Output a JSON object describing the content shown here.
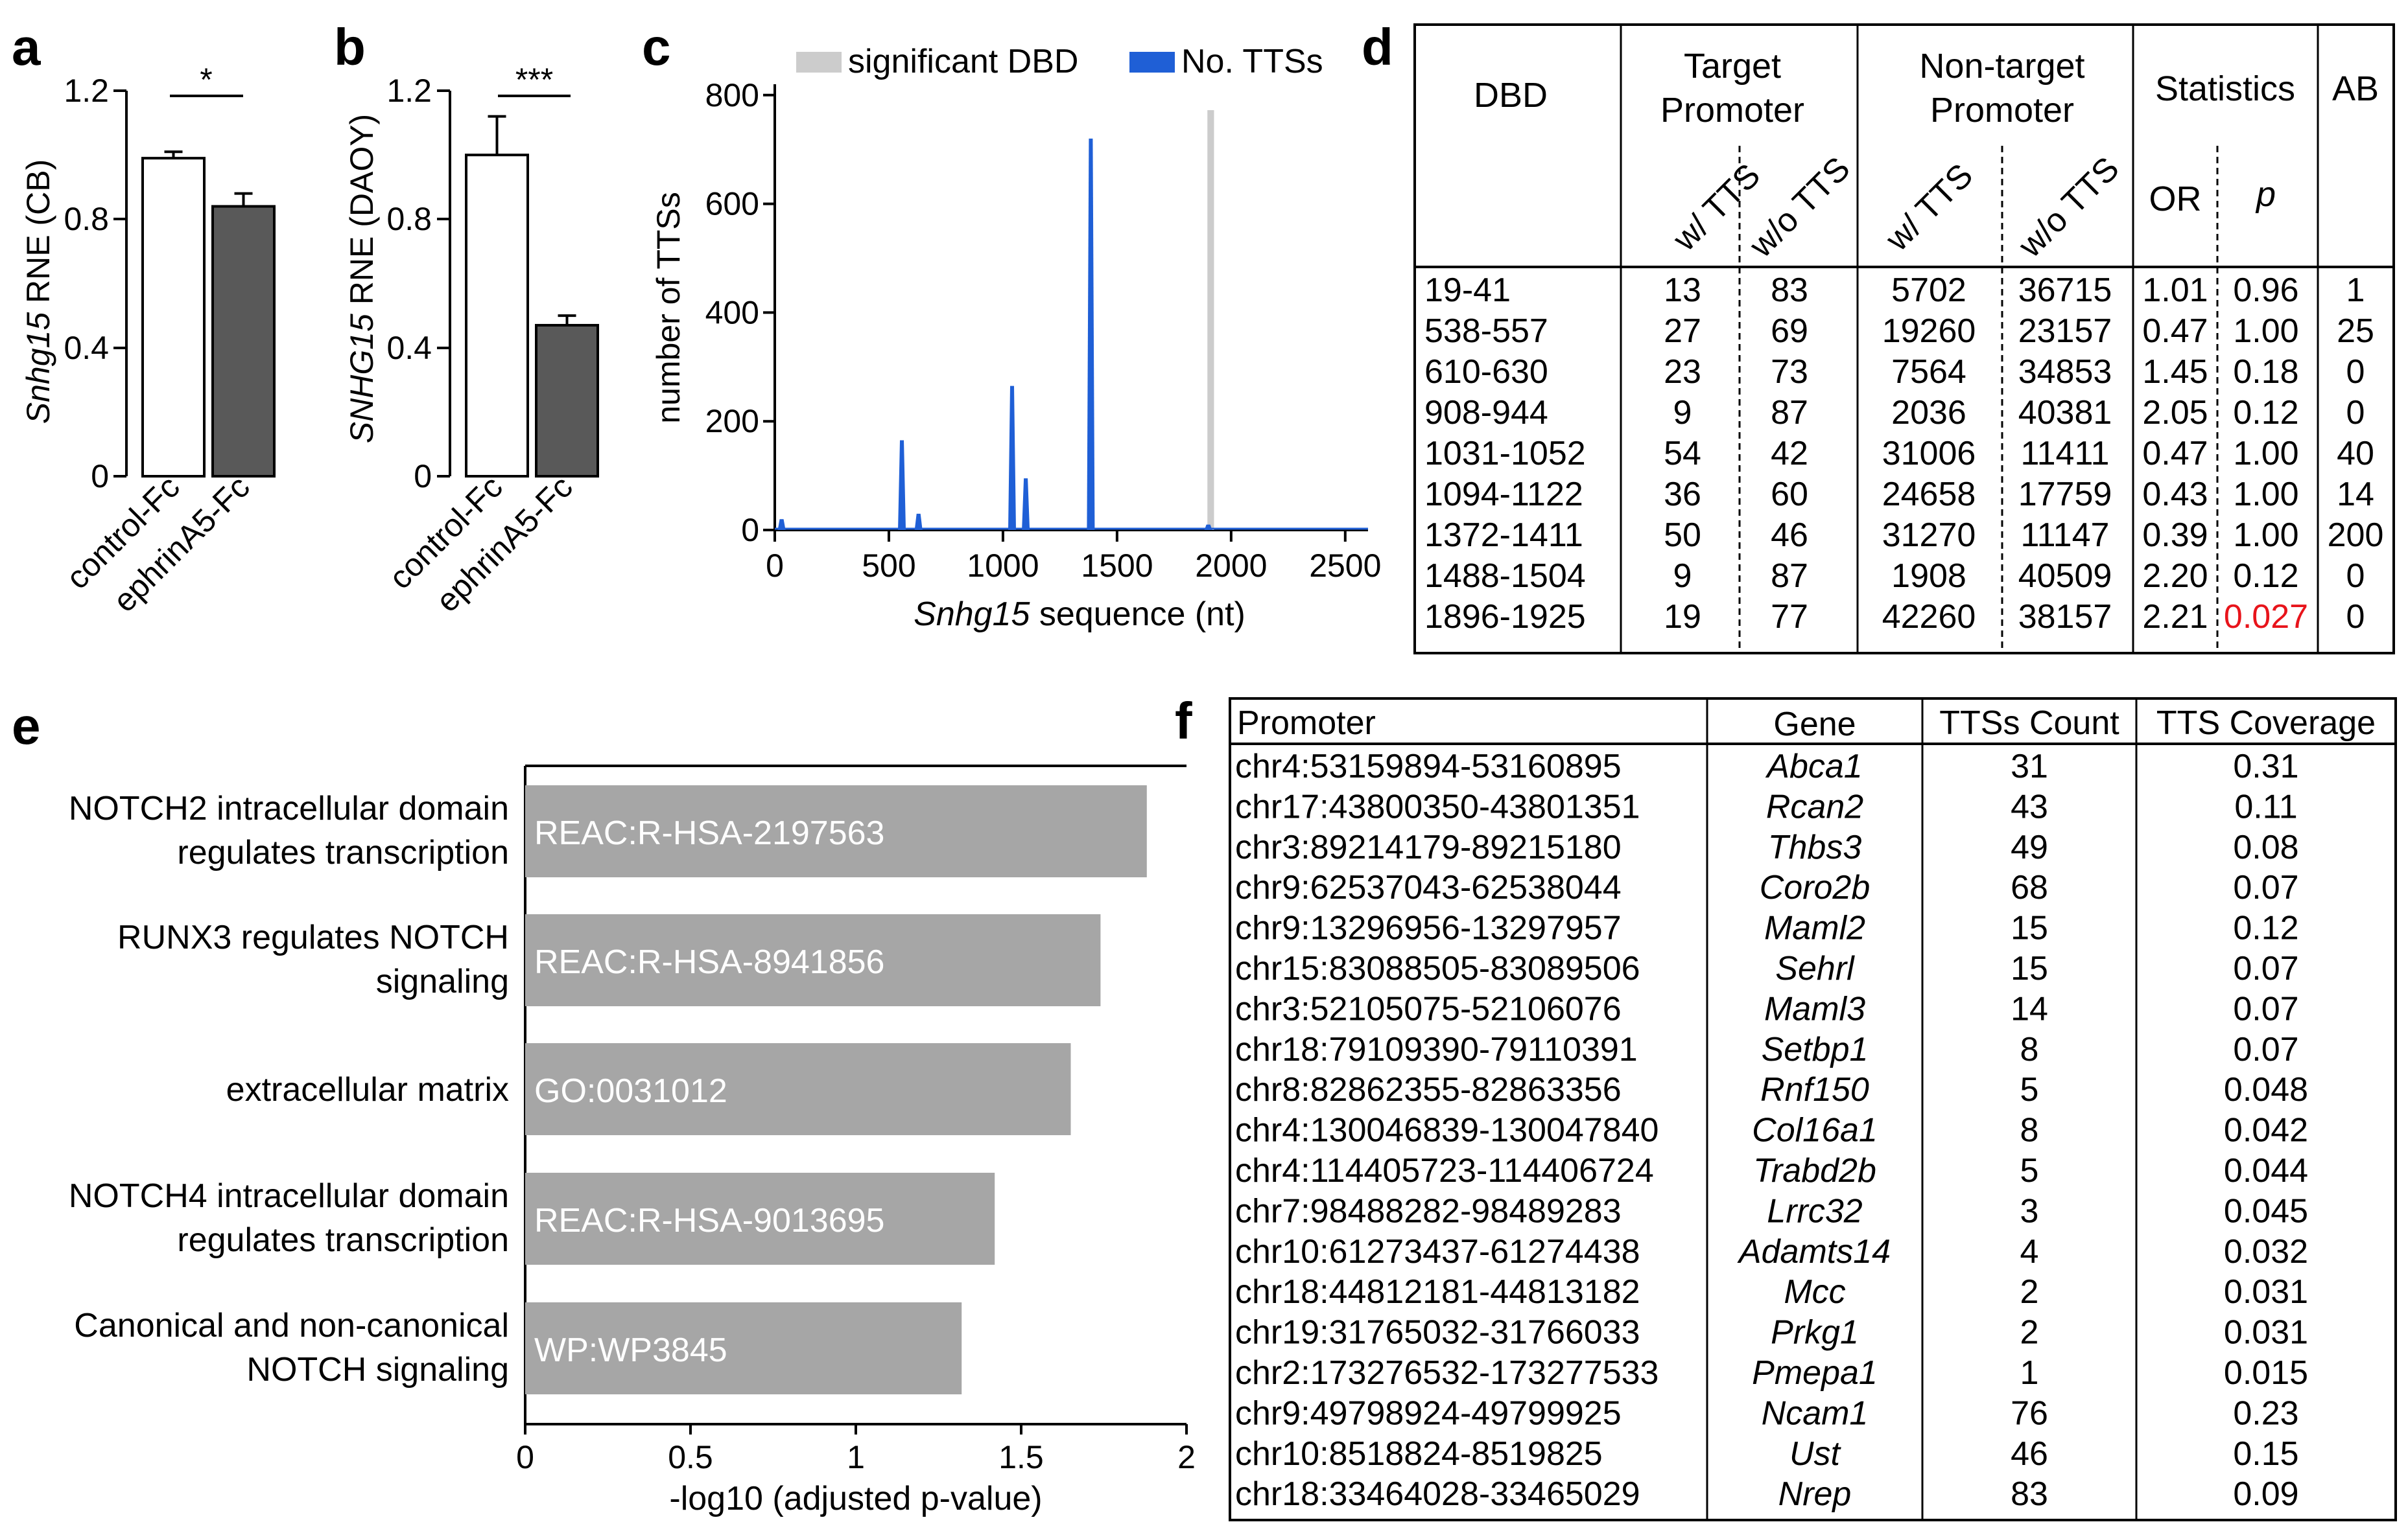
{
  "panels": {
    "a": {
      "letter": "a",
      "ylabel_italic": "Snhg15",
      "ylabel_rest": " RNE (CB)",
      "significance": "*",
      "tick_labels": [
        "0",
        "0.4",
        "0.8",
        "1.2"
      ]
    },
    "b": {
      "letter": "b",
      "ylabel_italic": "SNHG15",
      "ylabel_rest": " RNE (DAOY)",
      "significance": "***",
      "tick_labels": [
        "0",
        "0.4",
        "0.8",
        "1.2"
      ]
    },
    "c": {
      "letter": "c",
      "legend": [
        "significant DBD",
        "No. TTSs"
      ],
      "ylabel": "number of TTSs",
      "xlabel_italic": "Snhg15",
      "xlabel_rest": " sequence (nt)",
      "y_tick_labels": [
        "0",
        "200",
        "400",
        "600",
        "800"
      ],
      "x_tick_labels": [
        "0",
        "500",
        "1000",
        "1500",
        "2000",
        "2500"
      ]
    },
    "d": {
      "letter": "d",
      "headers": {
        "dbd": "DBD",
        "target_line1": "Target",
        "target_line2": "Promoter",
        "nontarget_line1": "Non-target",
        "nontarget_line2": "Promoter",
        "statistics": "Statistics",
        "ab": "AB",
        "w_tts": "w/ TTS",
        "wo_tts": "w/o TTS",
        "or": "OR",
        "p": "p"
      },
      "rows": [
        [
          "19-41",
          "13",
          "83",
          "5702",
          "36715",
          "1.01",
          "0.96",
          "1"
        ],
        [
          "538-557",
          "27",
          "69",
          "19260",
          "23157",
          "0.47",
          "1.00",
          "25"
        ],
        [
          "610-630",
          "23",
          "73",
          "7564",
          "34853",
          "1.45",
          "0.18",
          "0"
        ],
        [
          "908-944",
          "9",
          "87",
          "2036",
          "40381",
          "2.05",
          "0.12",
          "0"
        ],
        [
          "1031-1052",
          "54",
          "42",
          "31006",
          "11411",
          "0.47",
          "1.00",
          "40"
        ],
        [
          "1094-1122",
          "36",
          "60",
          "24658",
          "17759",
          "0.43",
          "1.00",
          "14"
        ],
        [
          "1372-1411",
          "50",
          "46",
          "31270",
          "11147",
          "0.39",
          "1.00",
          "200"
        ],
        [
          "1488-1504",
          "9",
          "87",
          "1908",
          "40509",
          "2.20",
          "0.12",
          "0"
        ],
        [
          "1896-1925",
          "19",
          "77",
          "42260",
          "38157",
          "2.21",
          "0.027",
          "0"
        ]
      ],
      "highlight_color": "#e8141b"
    },
    "e": {
      "letter": "e",
      "xlabel": "-log10 (adjusted p-value)",
      "x_tick_labels": [
        "0",
        "0.5",
        "1",
        "1.5",
        "2"
      ]
    },
    "f": {
      "letter": "f",
      "headers": [
        "Promoter",
        "Gene",
        "TTSs Count",
        "TTS Coverage"
      ],
      "rows": [
        [
          "chr4:53159894-53160895",
          "Abca1",
          "31",
          "0.31"
        ],
        [
          "chr17:43800350-43801351",
          "Rcan2",
          "43",
          "0.11"
        ],
        [
          "chr3:89214179-89215180",
          "Thbs3",
          "49",
          "0.08"
        ],
        [
          "chr9:62537043-62538044",
          "Coro2b",
          "68",
          "0.07"
        ],
        [
          "chr9:13296956-13297957",
          "Maml2",
          "15",
          "0.12"
        ],
        [
          "chr15:83088505-83089506",
          "Sehrl",
          "15",
          "0.07"
        ],
        [
          "chr3:52105075-52106076",
          "Maml3",
          "14",
          "0.07"
        ],
        [
          "chr18:79109390-79110391",
          "Setbp1",
          "8",
          "0.07"
        ],
        [
          "chr8:82862355-82863356",
          "Rnf150",
          "5",
          "0.048"
        ],
        [
          "chr4:130046839-130047840",
          "Col16a1",
          "8",
          "0.042"
        ],
        [
          "chr4:114405723-114406724",
          "Trabd2b",
          "5",
          "0.044"
        ],
        [
          "chr7:98488282-98489283",
          "Lrrc32",
          "3",
          "0.045"
        ],
        [
          "chr10:61273437-61274438",
          "Adamts14",
          "4",
          "0.032"
        ],
        [
          "chr18:44812181-44813182",
          "Mcc",
          "2",
          "0.031"
        ],
        [
          "chr19:31765032-31766033",
          "Prkg1",
          "2",
          "0.031"
        ],
        [
          "chr2:173276532-173277533",
          "Pmepa1",
          "1",
          "0.015"
        ],
        [
          "chr9:49798924-49799925",
          "Ncam1",
          "76",
          "0.23"
        ],
        [
          "chr10:8518824-8519825",
          "Ust",
          "46",
          "0.15"
        ],
        [
          "chr18:33464028-33465029",
          "Nrep",
          "83",
          "0.09"
        ]
      ]
    }
  },
  "chart_data": [
    {
      "type": "bar",
      "panel": "a",
      "categories": [
        "control-Fc",
        "ephrinA5-Fc"
      ],
      "values": [
        0.99,
        0.84
      ],
      "errors": [
        0.02,
        0.04
      ],
      "bar_colors": [
        "#ffffff",
        "#595959"
      ],
      "ylabel": "Snhg15 RNE (CB)",
      "ylim": [
        0,
        1.2
      ],
      "yticks": [
        0,
        0.4,
        0.8,
        1.2
      ]
    },
    {
      "type": "bar",
      "panel": "b",
      "categories": [
        "control-Fc",
        "ephrinA5-Fc"
      ],
      "values": [
        1.0,
        0.47
      ],
      "errors": [
        0.12,
        0.03
      ],
      "bar_colors": [
        "#ffffff",
        "#595959"
      ],
      "ylabel": "SNHG15 RNE (DAOY)",
      "ylim": [
        0,
        1.2
      ],
      "yticks": [
        0,
        0.4,
        0.8,
        1.2
      ]
    },
    {
      "type": "area",
      "panel": "c",
      "xlabel": "Snhg15 sequence (nt)",
      "ylabel": "number of TTSs",
      "xlim": [
        0,
        2600
      ],
      "ylim": [
        0,
        820
      ],
      "xticks": [
        0,
        500,
        1000,
        1500,
        2000,
        2500
      ],
      "yticks": [
        0,
        200,
        400,
        600,
        800
      ],
      "series": [
        {
          "name": "No. TTSs",
          "color": "#1f5fd6",
          "peaks": [
            {
              "x": 30,
              "y": 20
            },
            {
              "x": 557,
              "y": 165
            },
            {
              "x": 630,
              "y": 30
            },
            {
              "x": 1040,
              "y": 265
            },
            {
              "x": 1100,
              "y": 95
            },
            {
              "x": 1385,
              "y": 720
            },
            {
              "x": 1900,
              "y": 10
            }
          ]
        },
        {
          "name": "significant DBD",
          "color": "#cccccc",
          "ranges": [
            [
              1896,
              1925
            ]
          ]
        }
      ]
    },
    {
      "type": "bar",
      "panel": "e",
      "orientation": "horizontal",
      "xlabel": "-log10 (adjusted p-value)",
      "xlim": [
        0,
        2
      ],
      "xticks": [
        0,
        0.5,
        1,
        1.5,
        2
      ],
      "bar_color": "#a6a6a6",
      "categories": [
        [
          "NOTCH2 intracellular domain",
          "regulates transcription"
        ],
        [
          "RUNX3 regulates NOTCH",
          "signaling"
        ],
        [
          "extracellular matrix"
        ],
        [
          "NOTCH4 intracellular domain",
          "regulates transcription"
        ],
        [
          "Canonical and non-canonical",
          "NOTCH signaling"
        ]
      ],
      "ids": [
        "REAC:R-HSA-2197563",
        "REAC:R-HSA-8941856",
        "GO:0031012",
        "REAC:R-HSA-9013695",
        "WP:WP3845"
      ],
      "values": [
        1.88,
        1.74,
        1.65,
        1.42,
        1.32
      ]
    }
  ]
}
